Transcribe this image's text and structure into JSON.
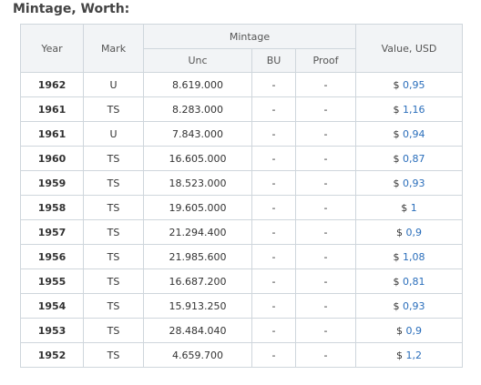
{
  "heading": "Mintage, Worth:",
  "table": {
    "headers": {
      "year": "Year",
      "mark": "Mark",
      "mintage": "Mintage",
      "unc": "Unc",
      "bu": "BU",
      "proof": "Proof",
      "value": "Value, USD"
    },
    "currency_symbol": "$",
    "rows": [
      {
        "year": "1962",
        "mark": "U",
        "unc": "8.619.000",
        "bu": "-",
        "proof": "-",
        "value": "0,95"
      },
      {
        "year": "1961",
        "mark": "TS",
        "unc": "8.283.000",
        "bu": "-",
        "proof": "-",
        "value": "1,16"
      },
      {
        "year": "1961",
        "mark": "U",
        "unc": "7.843.000",
        "bu": "-",
        "proof": "-",
        "value": "0,94"
      },
      {
        "year": "1960",
        "mark": "TS",
        "unc": "16.605.000",
        "bu": "-",
        "proof": "-",
        "value": "0,87"
      },
      {
        "year": "1959",
        "mark": "TS",
        "unc": "18.523.000",
        "bu": "-",
        "proof": "-",
        "value": "0,93"
      },
      {
        "year": "1958",
        "mark": "TS",
        "unc": "19.605.000",
        "bu": "-",
        "proof": "-",
        "value": "1"
      },
      {
        "year": "1957",
        "mark": "TS",
        "unc": "21.294.400",
        "bu": "-",
        "proof": "-",
        "value": "0,9"
      },
      {
        "year": "1956",
        "mark": "TS",
        "unc": "21.985.600",
        "bu": "-",
        "proof": "-",
        "value": "1,08"
      },
      {
        "year": "1955",
        "mark": "TS",
        "unc": "16.687.200",
        "bu": "-",
        "proof": "-",
        "value": "0,81"
      },
      {
        "year": "1954",
        "mark": "TS",
        "unc": "15.913.250",
        "bu": "-",
        "proof": "-",
        "value": "0,93"
      },
      {
        "year": "1953",
        "mark": "TS",
        "unc": "28.484.040",
        "bu": "-",
        "proof": "-",
        "value": "0,9"
      },
      {
        "year": "1952",
        "mark": "TS",
        "unc": "4.659.700",
        "bu": "-",
        "proof": "-",
        "value": "1,2"
      }
    ]
  },
  "colors": {
    "link": "#2a6ebb",
    "header_bg": "#f2f4f6",
    "border": "#cfd6dc"
  }
}
